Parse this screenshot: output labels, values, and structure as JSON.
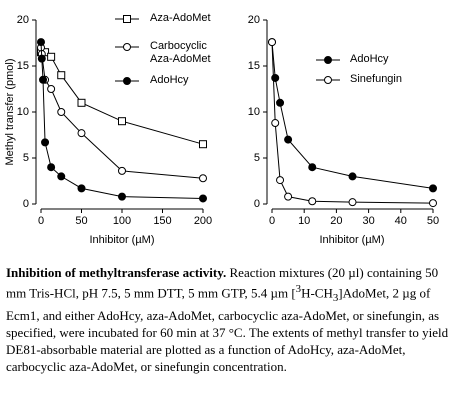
{
  "chart_data": [
    {
      "type": "line",
      "ylabel": "Methyl transfer (pmol)",
      "xlabel": "Inhibitor (µM)",
      "xlim": [
        0,
        200
      ],
      "xticks": [
        0,
        50,
        100,
        150,
        200
      ],
      "ylim": [
        0,
        20
      ],
      "yticks": [
        0,
        5,
        10,
        15,
        20
      ],
      "series": [
        {
          "name": "Aza-AdoMet",
          "color": "#000000",
          "marker": "square-open",
          "x": [
            0,
            5,
            12.5,
            25,
            50,
            100,
            200
          ],
          "values": [
            16.5,
            16.5,
            16,
            14,
            11,
            9,
            6.5
          ]
        },
        {
          "name": "Carbocyclic Aza-AdoMet",
          "color": "#000000",
          "marker": "circle-open",
          "x": [
            0,
            1,
            5,
            12.5,
            25,
            50,
            100,
            200
          ],
          "values": [
            17,
            16.3,
            13.5,
            12.5,
            10,
            7.7,
            3.6,
            2.8
          ]
        },
        {
          "name": "AdoHcy",
          "color": "#000000",
          "marker": "circle-filled",
          "x": [
            0,
            1,
            2.5,
            5,
            12.5,
            25,
            50,
            100,
            200
          ],
          "values": [
            17.6,
            15.8,
            13.5,
            6.7,
            4,
            3,
            1.7,
            0.8,
            0.6
          ]
        }
      ]
    },
    {
      "type": "line",
      "xlabel": "Inhibitor (µM)",
      "xlim": [
        0,
        50
      ],
      "xticks": [
        0,
        10,
        20,
        30,
        40,
        50
      ],
      "ylim": [
        0,
        20
      ],
      "yticks": [
        0,
        5,
        10,
        15,
        20
      ],
      "series": [
        {
          "name": "AdoHcy",
          "color": "#000000",
          "marker": "circle-filled",
          "x": [
            0,
            1,
            2.5,
            5,
            12.5,
            25,
            50
          ],
          "values": [
            17.6,
            13.7,
            11,
            7,
            4,
            3,
            1.7
          ]
        },
        {
          "name": "Sinefungin",
          "color": "#000000",
          "marker": "circle-open",
          "x": [
            0,
            1,
            2.5,
            5,
            12.5,
            25,
            50
          ],
          "values": [
            17.6,
            8.8,
            2.6,
            0.8,
            0.3,
            0.2,
            0.1
          ]
        }
      ]
    }
  ],
  "caption": {
    "title": "Inhibition of methyltransferase activity.",
    "text": [
      "Reaction mixtures (20 µl) containing 50 mm Tris-HCl, pH 7.5, 5 mm DTT, 5 mm GTP, 5.4 µm [",
      "3",
      "H-CH",
      "3",
      "]AdoMet, 2 µg of Ecm1, and either AdoHcy, aza-AdoMet, carbocyclic aza-AdoMet, or sinefungin, as specified, were incubated for 60 min at 37 °C. The extents of methyl transfer to yield DE81-absorbable material are plotted as a function of AdoHcy, aza-AdoMet, carbocyclic aza-AdoMet, or sinefungin concentration."
    ]
  }
}
